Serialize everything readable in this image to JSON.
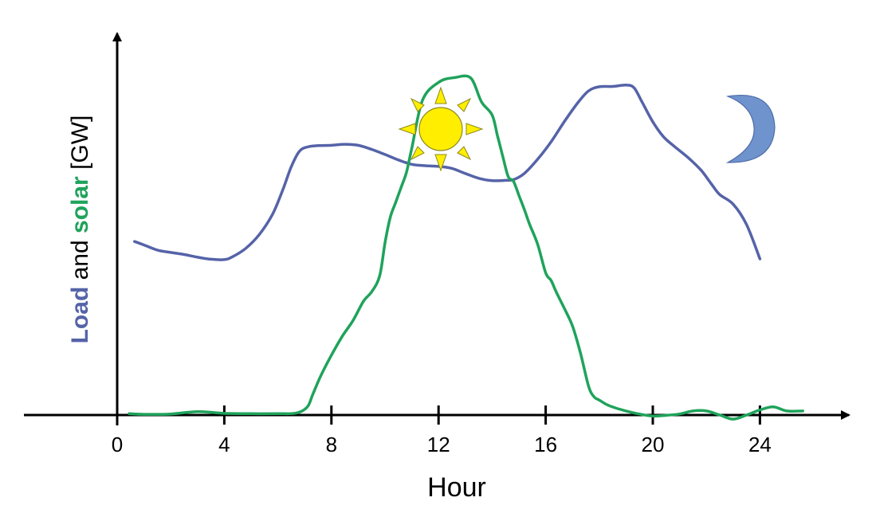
{
  "chart_data": {
    "type": "line",
    "title": "",
    "xlabel": "Hour",
    "ylabel_parts": [
      {
        "text": "Load",
        "bold": true,
        "color": "#5563a8"
      },
      {
        "text": " and ",
        "bold": false,
        "color": "#000000"
      },
      {
        "text": "solar",
        "bold": true,
        "color": "#1fa35b"
      },
      {
        "text": " [GW]",
        "bold": false,
        "color": "#000000"
      }
    ],
    "x_ticks": [
      0,
      4,
      8,
      12,
      16,
      20,
      24
    ],
    "x_tick_labels": [
      "0",
      "4",
      "8",
      "12",
      "16",
      "20",
      "24"
    ],
    "xlim": [
      -3.6,
      27.6
    ],
    "ylim": [
      0,
      100
    ],
    "grid": false,
    "legend": "none",
    "series": [
      {
        "name": "Load",
        "color": "#5563a8",
        "x": [
          0.65,
          1.0,
          1.5,
          2.0,
          2.5,
          3.0,
          3.5,
          4.0,
          4.3,
          4.8,
          5.3,
          5.8,
          6.2,
          6.5,
          6.8,
          7.1,
          7.5,
          8.0,
          8.5,
          9.0,
          9.5,
          10.0,
          10.5,
          11.0,
          11.5,
          12.0,
          12.5,
          13.0,
          13.5,
          14.0,
          14.5,
          14.8,
          15.2,
          15.7,
          16.2,
          16.7,
          17.2,
          17.6,
          18.0,
          18.5,
          19.0,
          19.3,
          19.6,
          20.0,
          20.4,
          20.8,
          21.3,
          21.8,
          22.2,
          22.5,
          23.0,
          23.5,
          24.0
        ],
        "y": [
          51,
          50,
          48.5,
          47.8,
          47.2,
          46.4,
          45.8,
          45.7,
          46.5,
          49,
          53,
          59,
          66.5,
          73,
          77.5,
          78.8,
          79.2,
          79.3,
          79.6,
          79.3,
          78.1,
          76.6,
          75,
          73.7,
          73.3,
          73.1,
          72.5,
          71,
          69.6,
          68.9,
          69,
          69.2,
          71,
          75.2,
          80.3,
          86.3,
          91.8,
          95.3,
          96.5,
          96.6,
          97,
          96.2,
          92,
          86.2,
          81.8,
          79,
          75.8,
          72,
          67.8,
          64.8,
          62,
          56,
          45.9
        ]
      },
      {
        "name": "Solar",
        "color": "#1fa35b",
        "x": [
          0.45,
          1.0,
          2.0,
          3.0,
          4.0,
          5.0,
          6.0,
          6.7,
          7.1,
          7.3,
          7.6,
          8.0,
          8.4,
          8.8,
          9.2,
          9.5,
          9.8,
          10.0,
          10.2,
          10.4,
          10.6,
          10.8,
          11.0,
          11.4,
          12.0,
          12.6,
          13.2,
          13.6,
          14.0,
          14.2,
          14.4,
          14.6,
          14.8,
          15.0,
          15.2,
          15.4,
          15.7,
          16.0,
          16.2,
          16.4,
          16.7,
          17.0,
          17.3,
          17.6,
          17.8,
          18.0,
          18.3,
          18.6,
          19.0,
          19.5,
          20.0,
          20.5,
          21.0,
          21.5,
          22.0,
          22.5,
          23.0,
          23.5,
          24.0,
          24.5,
          25.0,
          25.6
        ],
        "y": [
          0.4,
          0.2,
          0.3,
          1.0,
          0.5,
          0.4,
          0.4,
          0.6,
          2.4,
          6.0,
          11.5,
          17.6,
          23.1,
          27.7,
          33.5,
          36.2,
          40.9,
          50.6,
          58.2,
          62.5,
          66.9,
          71.3,
          78.4,
          92.5,
          97.8,
          99.2,
          99.1,
          92.1,
          88.2,
          82.1,
          76.0,
          70.1,
          68.7,
          64.6,
          60.5,
          56.1,
          50.2,
          41.8,
          39.6,
          36.1,
          31.3,
          26.2,
          18.2,
          8.5,
          5.4,
          4.4,
          3.0,
          2.1,
          1.2,
          0.3,
          -0.3,
          -0.1,
          0.3,
          1.2,
          1.2,
          0.0,
          -1.2,
          0.0,
          1.5,
          2.4,
          1.2,
          1.2
        ]
      }
    ],
    "icons": {
      "sun": {
        "name": "sun-icon",
        "fill": "#ffee00",
        "stroke": "#8a8a20"
      },
      "moon": {
        "name": "crescent-moon-icon",
        "fill": "#6f93cc",
        "stroke": "#4f6da8"
      }
    }
  }
}
